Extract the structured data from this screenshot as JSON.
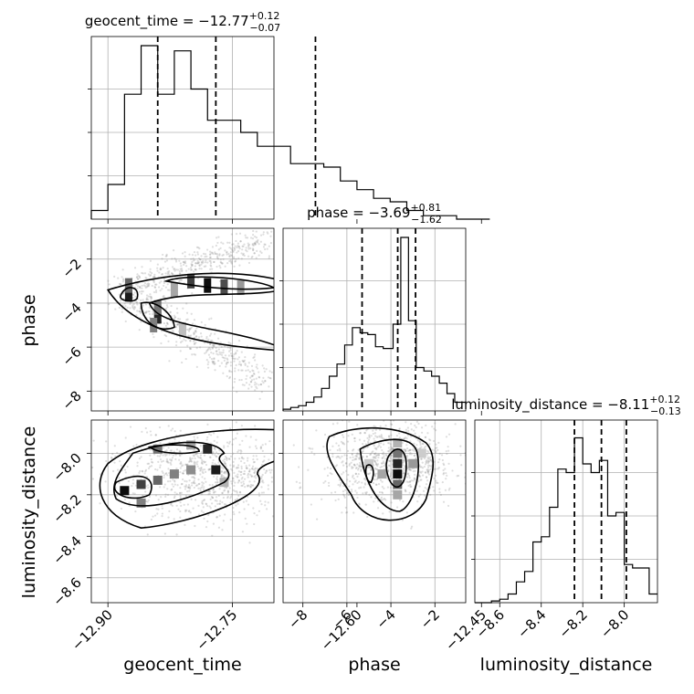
{
  "chart_data": {
    "type": "corner",
    "parameters": [
      "geocent_time",
      "phase",
      "luminosity_distance"
    ],
    "axis_labels": [
      "geocent_time",
      "phase",
      "luminosity_distance"
    ],
    "tick_labels": {
      "geocent_time": [
        "−12.90",
        "−12.75",
        "−12.60",
        "−12.45"
      ],
      "phase": [
        "−8",
        "−6",
        "−4",
        "−2"
      ],
      "luminosity_distance": [
        "−8.6",
        "−8.4",
        "−8.2",
        "−8.0"
      ]
    },
    "ticks": {
      "geocent_time": [
        -12.9,
        -12.75,
        -12.6,
        -12.45
      ],
      "phase": [
        -8,
        -6,
        -4,
        -2
      ],
      "luminosity_distance": [
        -8.6,
        -8.4,
        -8.2,
        -8.0
      ]
    },
    "ranges": {
      "geocent_time": [
        -12.92,
        -12.7
      ],
      "phase": [
        -8.9,
        -0.6
      ],
      "luminosity_distance": [
        -8.72,
        -7.84
      ]
    },
    "titles": [
      {
        "param": "geocent_time",
        "prefix": "geocent_time = ",
        "median": "−12.77",
        "plus": "+0.12",
        "minus": "−0.07"
      },
      {
        "param": "phase",
        "prefix": "phase = ",
        "median": "−3.69",
        "plus": "+0.81",
        "minus": "−1.62"
      },
      {
        "param": "luminosity_distance",
        "prefix": "luminosity_distance = ",
        "median": "−8.11",
        "plus": "+0.12",
        "minus": "−0.13"
      }
    ],
    "quantiles": {
      "geocent_time": [
        -12.84,
        -12.77,
        -12.65
      ],
      "phase": [
        -5.31,
        -3.69,
        -2.88
      ],
      "luminosity_distance": [
        -8.24,
        -8.11,
        -7.99
      ]
    },
    "histograms": {
      "geocent_time": {
        "edges": [
          -12.92,
          -12.9,
          -12.88,
          -12.86,
          -12.84,
          -12.82,
          -12.8,
          -12.78,
          -12.76,
          -12.74,
          -12.72,
          -12.7,
          -12.68,
          -12.66,
          -12.64,
          -12.62,
          -12.6,
          -12.58,
          -12.56,
          -12.54,
          -12.52,
          -12.5,
          -12.48,
          -12.46,
          -12.44
        ],
        "counts": [
          0.05,
          0.2,
          0.72,
          1.0,
          0.72,
          0.97,
          0.75,
          0.57,
          0.57,
          0.5,
          0.42,
          0.42,
          0.32,
          0.32,
          0.3,
          0.22,
          0.17,
          0.12,
          0.1,
          0.05,
          0.02,
          0.02,
          0.0,
          0.0
        ]
      },
      "phase": {
        "edges": [
          -8.9,
          -8.55,
          -8.2,
          -7.85,
          -7.5,
          -7.15,
          -6.8,
          -6.45,
          -6.1,
          -5.75,
          -5.4,
          -5.05,
          -4.7,
          -4.35,
          -3.9,
          -3.55,
          -3.2,
          -2.85,
          -2.5,
          -2.15,
          -1.8,
          -1.45,
          -1.1,
          -0.6
        ],
        "counts": [
          0.01,
          0.02,
          0.03,
          0.05,
          0.08,
          0.13,
          0.2,
          0.27,
          0.38,
          0.48,
          0.45,
          0.44,
          0.37,
          0.36,
          0.5,
          1.0,
          0.52,
          0.25,
          0.23,
          0.2,
          0.16,
          0.1,
          0.05
        ]
      },
      "luminosity_distance": {
        "edges": [
          -8.72,
          -8.68,
          -8.64,
          -8.6,
          -8.56,
          -8.52,
          -8.48,
          -8.44,
          -8.4,
          -8.36,
          -8.32,
          -8.28,
          -8.24,
          -8.2,
          -8.16,
          -8.12,
          -8.08,
          -8.04,
          -8.0,
          -7.96,
          -7.92,
          -7.88,
          -7.84
        ],
        "counts": [
          0.0,
          0.0,
          0.01,
          0.02,
          0.05,
          0.12,
          0.18,
          0.35,
          0.38,
          0.55,
          0.77,
          0.75,
          0.95,
          0.8,
          0.75,
          0.82,
          0.5,
          0.52,
          0.22,
          0.2,
          0.2,
          0.05
        ]
      }
    },
    "contour_levels": [
      "0.5",
      "1.0",
      "1.5",
      "2.0"
    ]
  }
}
